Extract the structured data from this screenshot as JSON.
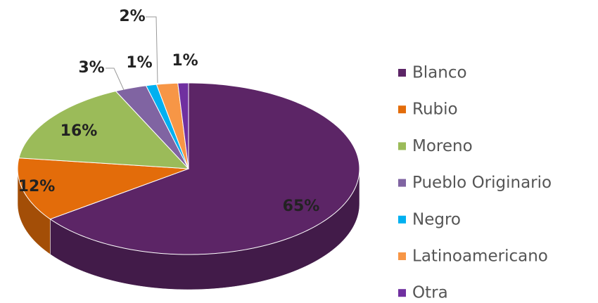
{
  "chart_data": {
    "type": "pie3d",
    "categories": [
      "Blanco",
      "Rubio",
      "Moreno",
      "Pueblo Originario",
      "Negro",
      "Latinoamericano",
      "Otra"
    ],
    "values": [
      65,
      12,
      16,
      3,
      1,
      2,
      1
    ],
    "value_labels": [
      "65%",
      "12%",
      "16%",
      "3%",
      "1%",
      "2%",
      "1%"
    ],
    "colors": [
      "#5c2566",
      "#e36c0a",
      "#9bbb59",
      "#8064a2",
      "#00b0f0",
      "#f79646",
      "#7030a0"
    ],
    "legend": "right"
  }
}
